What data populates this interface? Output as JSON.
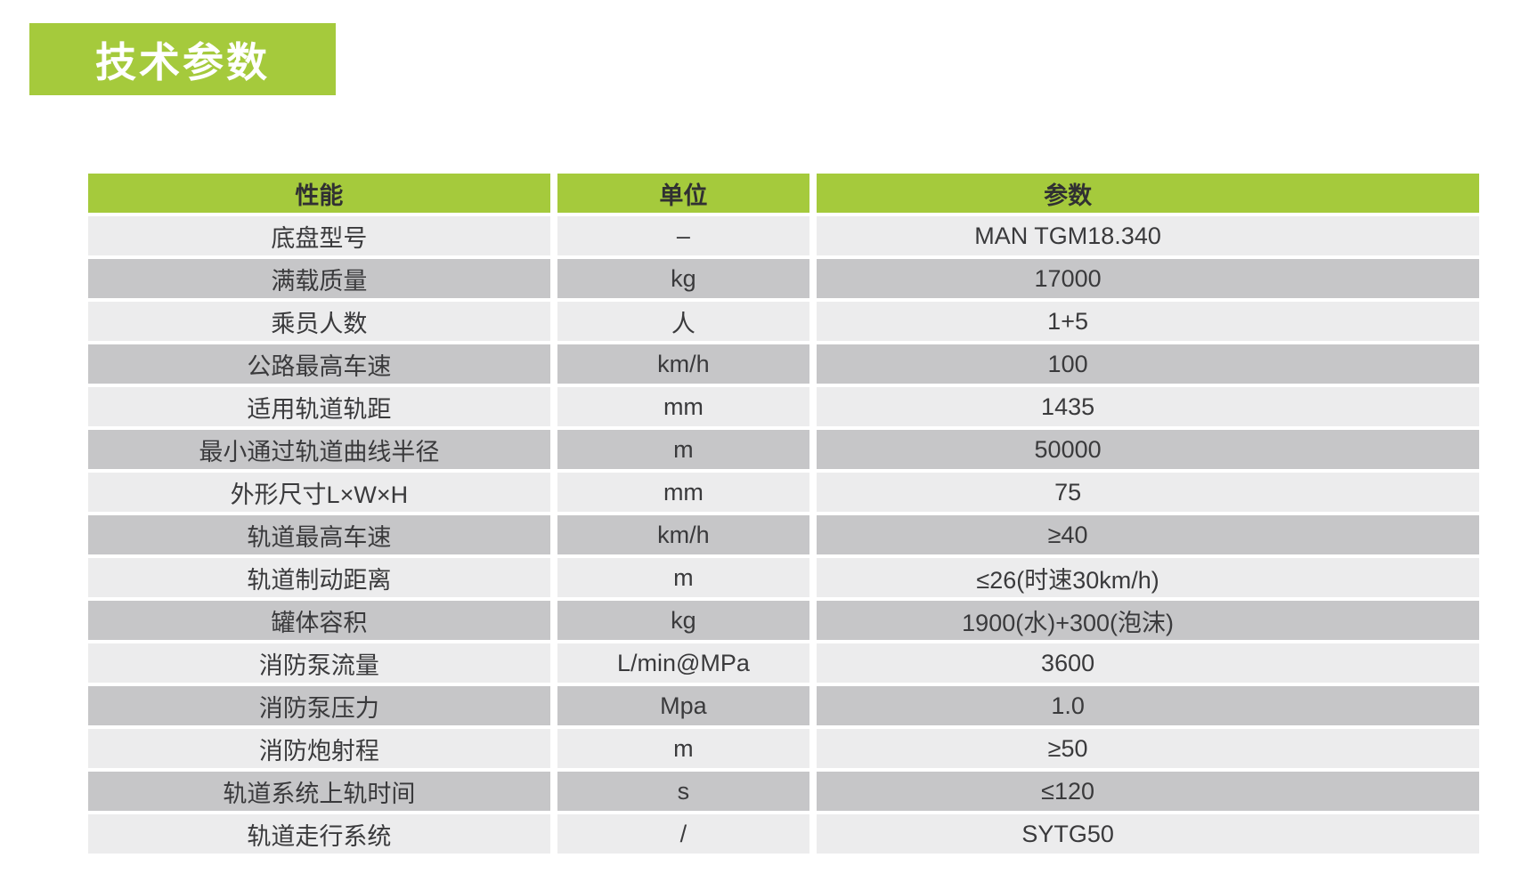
{
  "title": {
    "text": "技术参数"
  },
  "colors": {
    "accent": "#a5ca3c",
    "row_light": "#ececed",
    "row_dark": "#c6c6c8",
    "header_text": "#303032",
    "body_text": "#3a3a3c",
    "title_text": "#ffffff"
  },
  "table": {
    "header": {
      "performance": "性能",
      "unit": "单位",
      "parameter": "参数"
    },
    "rows": [
      {
        "performance": "底盘型号",
        "unit": "–",
        "parameter": "MAN TGM18.340"
      },
      {
        "performance": "满载质量",
        "unit": "kg",
        "parameter": "17000"
      },
      {
        "performance": "乘员人数",
        "unit": "人",
        "parameter": "1+5"
      },
      {
        "performance": "公路最高车速",
        "unit": "km/h",
        "parameter": "100"
      },
      {
        "performance": "适用轨道轨距",
        "unit": "mm",
        "parameter": "1435"
      },
      {
        "performance": "最小通过轨道曲线半径",
        "unit": "m",
        "parameter": "50000"
      },
      {
        "performance": "外形尺寸L×W×H",
        "unit": "mm",
        "parameter": "75"
      },
      {
        "performance": "轨道最高车速",
        "unit": "km/h",
        "parameter": "≥40"
      },
      {
        "performance": "轨道制动距离",
        "unit": "m",
        "parameter": "≤26(时速30km/h)"
      },
      {
        "performance": "罐体容积",
        "unit": "kg",
        "parameter": "1900(水)+300(泡沫)"
      },
      {
        "performance": "消防泵流量",
        "unit": "L/min@MPa",
        "parameter": "3600"
      },
      {
        "performance": "消防泵压力",
        "unit": "Mpa",
        "parameter": "1.0"
      },
      {
        "performance": "消防炮射程",
        "unit": "m",
        "parameter": "≥50"
      },
      {
        "performance": "轨道系统上轨时间",
        "unit": "s",
        "parameter": "≤120"
      },
      {
        "performance": "轨道走行系统",
        "unit": "/",
        "parameter": "SYTG50"
      }
    ]
  }
}
